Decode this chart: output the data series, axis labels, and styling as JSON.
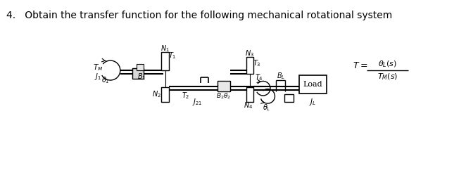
{
  "title": "4.   Obtain the transfer function for the following mechanical rotational system",
  "title_fontsize": 10,
  "bg_color": "#ffffff",
  "figsize": [
    6.62,
    2.56
  ],
  "dpi": 100
}
